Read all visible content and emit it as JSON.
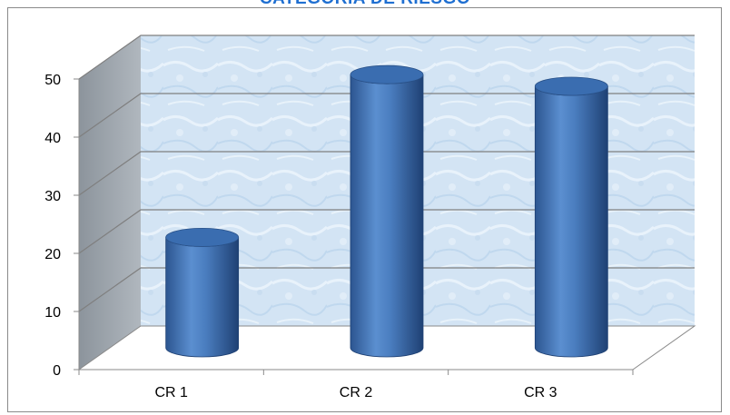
{
  "chart_data": {
    "type": "bar",
    "title": "CATEGORIA DE RIESGO",
    "categories": [
      "CR 1",
      "CR 2",
      "CR 3"
    ],
    "values": [
      19,
      47,
      45
    ],
    "ylim": [
      0,
      50
    ],
    "yticks": [
      0,
      10,
      20,
      30,
      40,
      50
    ],
    "xlabel": "",
    "ylabel": "",
    "grid": true,
    "style": "3d-cylinder",
    "colors": {
      "bar": "#4f81bd",
      "bar_dark": "#2a5289",
      "bar_top": "#3a6db0",
      "back_wall": "#d6e6f5",
      "side_wall": "#9aa3ad",
      "title": "#1f6fd1"
    }
  }
}
